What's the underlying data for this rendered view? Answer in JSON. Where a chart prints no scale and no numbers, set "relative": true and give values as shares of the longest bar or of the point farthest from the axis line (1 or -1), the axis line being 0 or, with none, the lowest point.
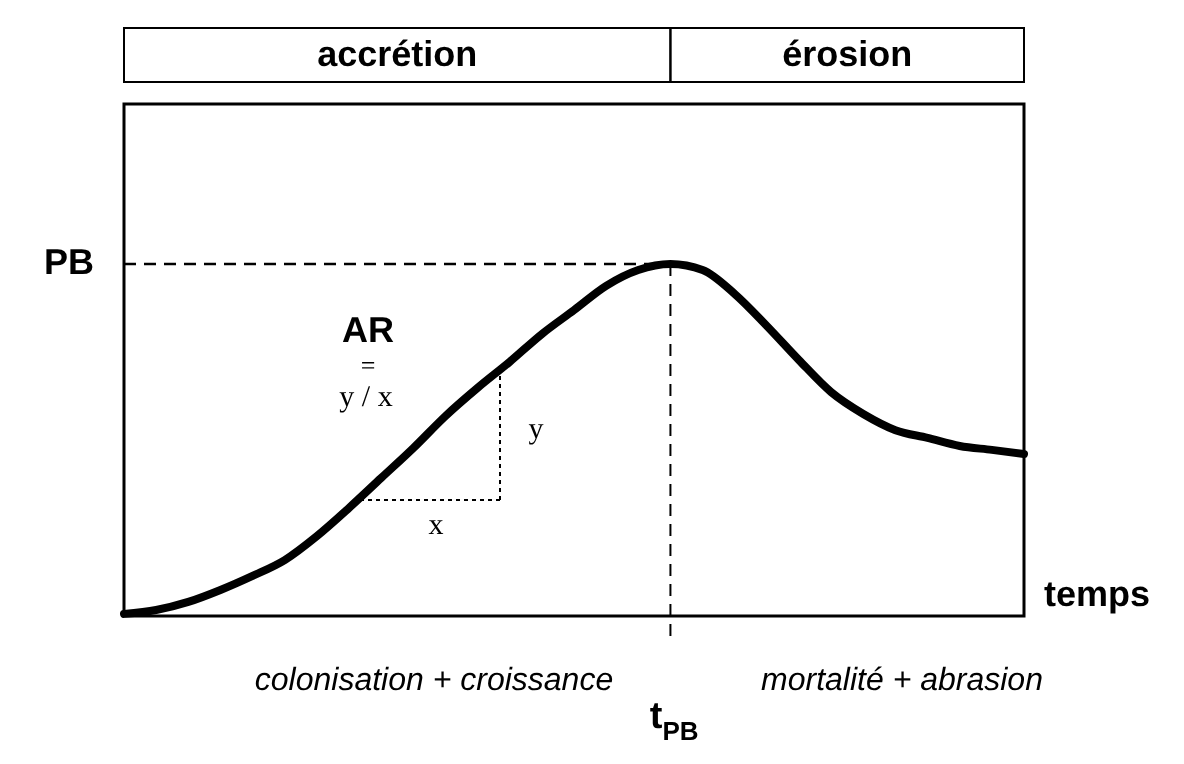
{
  "chart_data": {
    "type": "line",
    "relative": true,
    "xlabel": "temps",
    "categories": [
      null,
      null,
      null,
      null,
      null,
      null,
      null,
      null,
      null,
      null,
      null,
      null,
      null,
      null,
      null,
      null,
      null,
      null,
      null,
      null,
      null,
      null,
      null,
      null,
      null,
      null,
      null,
      null,
      null
    ],
    "series": [
      {
        "color": "#000000",
        "values": [
          0.006,
          0.017,
          0.04,
          0.074,
          0.114,
          0.159,
          0.227,
          0.307,
          0.392,
          0.477,
          0.568,
          0.648,
          0.722,
          0.801,
          0.869,
          0.938,
          0.983,
          1,
          0.983,
          0.915,
          0.824,
          0.727,
          0.636,
          0.574,
          0.528,
          0.506,
          0.483,
          0.472,
          0.46
        ]
      }
    ],
    "ref_lines": [
      {
        "axis": "y",
        "value": 1,
        "label": "PB",
        "line_style": "dashed"
      }
    ],
    "annotations": [
      "accrétion",
      "érosion",
      "colonisation + croissance",
      "mortalité + abrasion",
      "AR",
      "=",
      "y / x",
      "x",
      "y",
      "t$_{PB}$"
    ],
    "line_style": "solid",
    "marker": "none"
  }
}
